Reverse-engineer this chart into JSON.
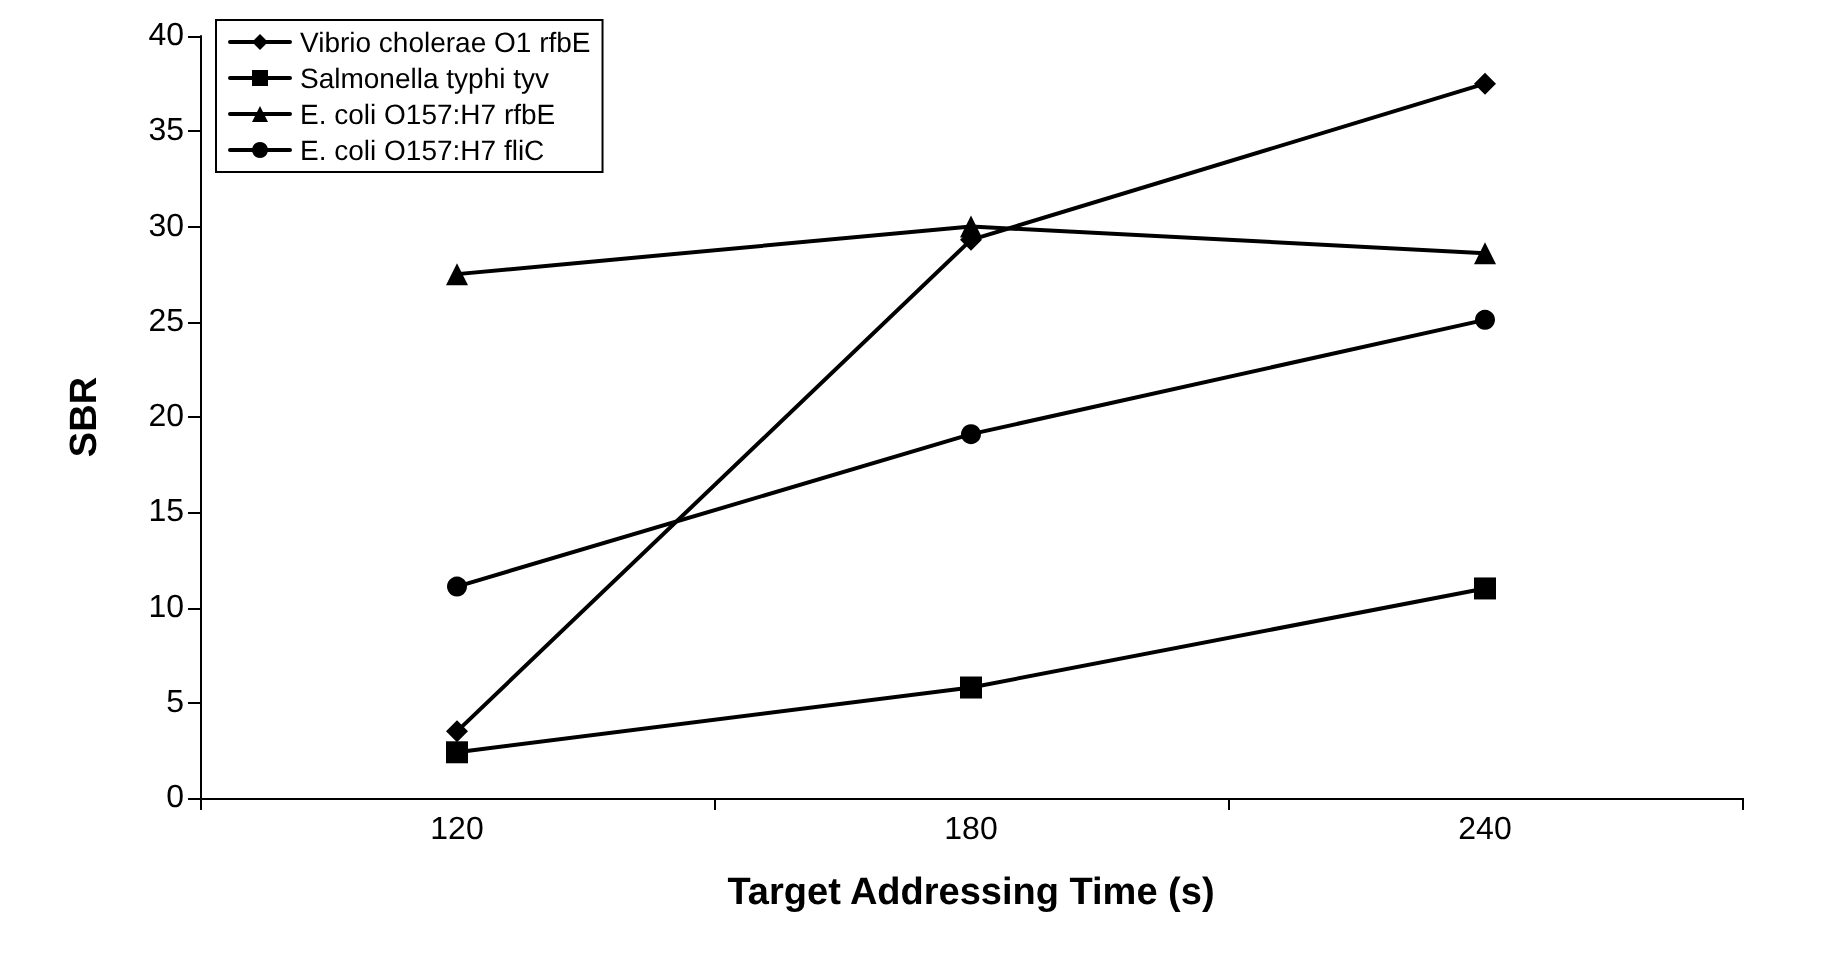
{
  "chart_data": {
    "type": "line",
    "xlabel": "Target Addressing Time (s)",
    "ylabel": "SBR",
    "categories": [
      "120",
      "180",
      "240"
    ],
    "series": [
      {
        "name": "Vibrio cholerae O1 rfbE",
        "color": "#000000",
        "marker": "diamond",
        "values": [
          3.5,
          29.3,
          37.5
        ]
      },
      {
        "name": "Salmonella typhi tyv",
        "color": "#000000",
        "marker": "square",
        "values": [
          2.4,
          5.8,
          11
        ]
      },
      {
        "name": "E. coli O157:H7 rfbE",
        "color": "#000000",
        "marker": "triangle",
        "values": [
          27.5,
          30,
          28.6
        ]
      },
      {
        "name": "E. coli O157:H7 fliC",
        "color": "#000000",
        "marker": "circle",
        "values": [
          11.1,
          19.1,
          25.1
        ]
      }
    ],
    "ylim": [
      0,
      40
    ],
    "yticks": [
      0,
      5,
      10,
      15,
      20,
      25,
      30,
      35,
      40
    ],
    "grid": false,
    "legend": "top left",
    "line_style": "solid"
  }
}
